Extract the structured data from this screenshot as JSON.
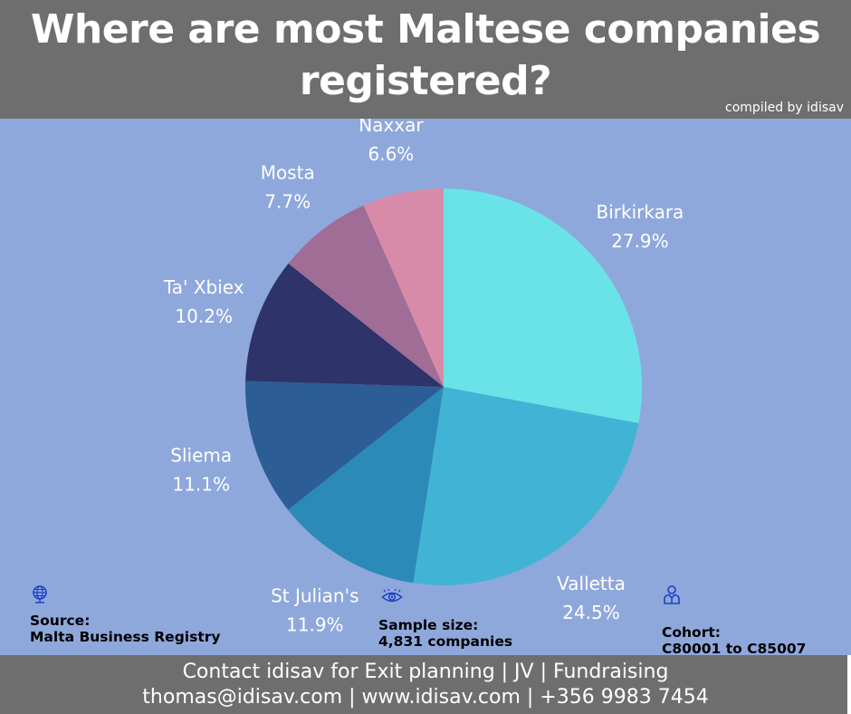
{
  "header": {
    "title": "Where are most Maltese companies registered?",
    "credit": "compiled by idisav"
  },
  "chart_data": {
    "type": "pie",
    "title": "Where are most Maltese companies registered?",
    "slices": [
      {
        "label": "Birkirkara",
        "value": 27.9,
        "display": "27.9%",
        "color": "#6ae3e8"
      },
      {
        "label": "Valletta",
        "value": 24.5,
        "display": "24.5%",
        "color": "#41b4d6"
      },
      {
        "label": "St Julian's",
        "value": 11.9,
        "display": "11.9%",
        "color": "#2c8ab8"
      },
      {
        "label": "Sliema",
        "value": 11.1,
        "display": "11.1%",
        "color": "#2c5d95"
      },
      {
        "label": "Ta' Xbiex",
        "value": 10.2,
        "display": "10.2%",
        "color": "#2e336a"
      },
      {
        "label": "Mosta",
        "value": 7.7,
        "display": "7.7%",
        "color": "#a06d96"
      },
      {
        "label": "Naxxar",
        "value": 6.6,
        "display": "6.6%",
        "color": "#d78ba8"
      }
    ],
    "start": "12 o'clock",
    "direction": "clockwise",
    "legend": "none"
  },
  "info": {
    "source": {
      "icon": "globe-icon",
      "heading": "Source:",
      "value": "Malta Business Registry"
    },
    "sample": {
      "icon": "eye-icon",
      "heading": "Sample size:",
      "value": "4,831 companies"
    },
    "cohort": {
      "icon": "person-icon",
      "heading": "Cohort:",
      "value": "C80001 to C85007"
    }
  },
  "footer": {
    "line1": "Contact idisav for Exit planning | JV | Fundraising",
    "line2": "thomas@idisav.com | www.idisav.com | +356 9983 7454"
  },
  "colors": {
    "background": "#8fa8dc",
    "bars": "#6e6e6e",
    "icon": "#1c3fc4"
  }
}
